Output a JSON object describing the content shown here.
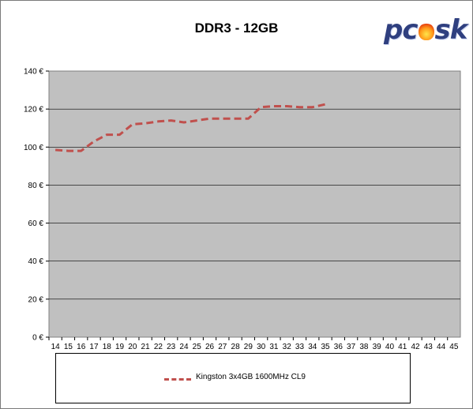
{
  "chart_data": {
    "type": "line",
    "title": "DDR3 - 12GB",
    "xlabel": "",
    "ylabel": "",
    "categories": [
      "14",
      "15",
      "16",
      "17",
      "18",
      "19",
      "20",
      "21",
      "22",
      "23",
      "24",
      "25",
      "26",
      "27",
      "28",
      "29",
      "30",
      "31",
      "32",
      "33",
      "34",
      "35",
      "36",
      "37",
      "38",
      "39",
      "40",
      "41",
      "42",
      "43",
      "44",
      "45"
    ],
    "y_ticks": [
      "0 €",
      "20 €",
      "40 €",
      "60 €",
      "80 €",
      "100 €",
      "120 €",
      "140 €"
    ],
    "ylim": [
      0,
      140
    ],
    "grid": true,
    "legend_position": "bottom",
    "series": [
      {
        "name": "Kingston 3x4GB 1600MHz CL9",
        "color": "#c0504d",
        "style": "dashed",
        "x": [
          14,
          15,
          16,
          17,
          18,
          19,
          20,
          21,
          22,
          23,
          24,
          25,
          26,
          27,
          28,
          29,
          30,
          31,
          32,
          33,
          34,
          35
        ],
        "values": [
          98.5,
          98,
          98,
          103,
          106.5,
          106.5,
          112,
          112.5,
          113.5,
          114,
          113,
          114,
          115,
          115,
          115,
          115,
          121,
          121.5,
          121.5,
          121,
          121,
          122.5
        ]
      }
    ]
  },
  "logo": {
    "text": "pcsk",
    "colors": {
      "text": "#2f3f7f",
      "flame": "#ff9a1a"
    }
  },
  "colors": {
    "plot_background": "#c0c0c0",
    "gridline": "#000000"
  }
}
